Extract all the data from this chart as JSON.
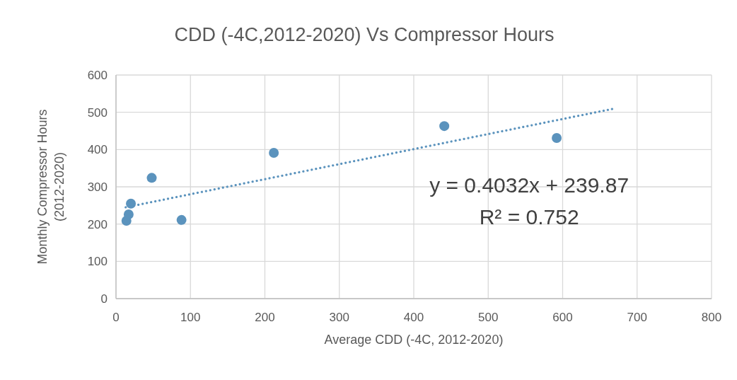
{
  "chart_data": {
    "type": "scatter",
    "title": "CDD (-4C,2012-2020) Vs Compressor Hours",
    "xlabel": "Average CDD (-4C, 2012-2020)",
    "ylabel": "Monthly Compressor Hours (2012-2020)",
    "series": [
      {
        "color": "#5b93bd",
        "x": [
          14,
          17,
          20,
          48,
          88,
          212,
          441,
          592
        ],
        "values": [
          209,
          226,
          255,
          324,
          211,
          391,
          463,
          431
        ],
        "marker": "circle"
      },
      {
        "type": "line",
        "color": "#5b93bd",
        "x": [
          13,
          667
        ],
        "values": [
          245,
          509
        ],
        "line_style": "dotted"
      }
    ],
    "annotations": [
      "y = 0.4032x + 239.87",
      "R² = 0.752"
    ],
    "xlim": [
      0,
      800
    ],
    "xticks": [
      0,
      100,
      200,
      300,
      400,
      500,
      600,
      700,
      800
    ],
    "ylim": [
      0,
      600
    ],
    "yticks": [
      0,
      100,
      200,
      300,
      400,
      500,
      600
    ],
    "grid": true
  }
}
